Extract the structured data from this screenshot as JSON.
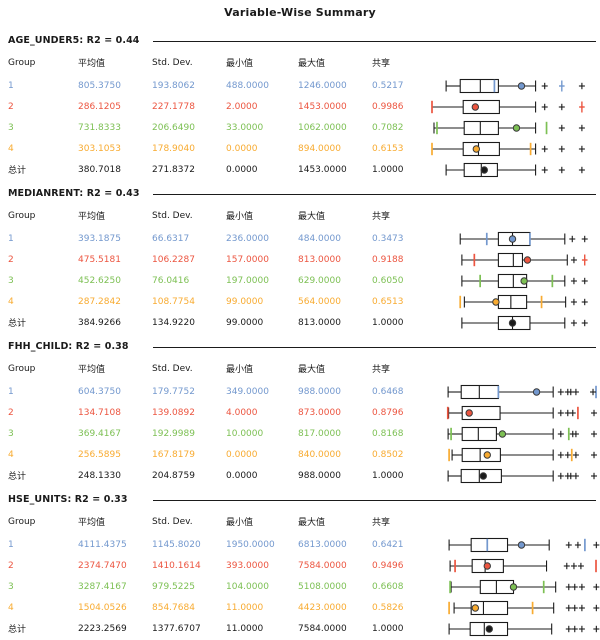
{
  "title": "Variable-Wise Summary",
  "columns": [
    "Group",
    "平均值",
    "Std. Dev.",
    "最小值",
    "最大值",
    "共享"
  ],
  "total_label": "总计",
  "colors": {
    "g1": "#7398CE",
    "g2": "#EC5540",
    "g3": "#7DC054",
    "g4": "#F8AB31",
    "total": "#1A1A1A",
    "line": "#1B1B1B",
    "dot_outline": "#3A3A3A"
  },
  "chart_data": [
    {
      "type": "boxplot",
      "title": "AGE_UNDER5: R2 = 0.44",
      "groups": [
        {
          "group": "1",
          "color": "g1",
          "mean": "805.3750",
          "std": "193.8062",
          "min": "488.0000",
          "max": "1246.0000",
          "share": "0.5217",
          "box": {
            "wlo": 8.5,
            "q1": 17,
            "med": 29.1,
            "q3": 40,
            "whi": 62.4,
            "dot": 53.9,
            "ticks": [
              37.6
            ],
            "outliers": [
              {
                "x": 67.9
              },
              {
                "x": 78.2,
                "colored": true
              },
              {
                "x": 90.3
              }
            ]
          }
        },
        {
          "group": "2",
          "color": "g2",
          "mean": "286.1205",
          "std": "227.1778",
          "min": "2.0000",
          "max": "1453.0000",
          "share": "0.9986",
          "box": {
            "wlo": 0,
            "capL": false,
            "q1": 18.8,
            "q3": 40.6,
            "whi": 62.4,
            "dot": 26.1,
            "ticks": [
              0
            ],
            "outliers": [
              {
                "x": 67.9
              },
              {
                "x": 78.2
              },
              {
                "x": 90.3,
                "colored": true
              }
            ]
          }
        },
        {
          "group": "3",
          "color": "g3",
          "mean": "731.8333",
          "std": "206.6490",
          "min": "33.0000",
          "max": "1062.0000",
          "share": "0.7082",
          "box": {
            "wlo": 1.2,
            "q1": 19.4,
            "med": 29.1,
            "q3": 40,
            "whi": 62.4,
            "dot": 50.9,
            "ticks": [
              3,
              69
            ],
            "outliers": [
              {
                "x": 78.2
              },
              {
                "x": 90.3
              }
            ]
          }
        },
        {
          "group": "4",
          "color": "g4",
          "mean": "303.1053",
          "std": "178.9040",
          "min": "0.0000",
          "max": "894.0000",
          "share": "0.6153",
          "box": {
            "wlo": 0,
            "capL": false,
            "q1": 18.8,
            "med": 28,
            "q3": 40.6,
            "whi": 62.4,
            "dot": 26.7,
            "ticks": [
              0,
              59.4
            ],
            "outliers": [
              {
                "x": 67.9
              },
              {
                "x": 78.2
              },
              {
                "x": 90.3
              }
            ]
          }
        },
        {
          "group": "总计",
          "color": "total",
          "mean": "380.7018",
          "std": "271.8372",
          "min": "0.0000",
          "max": "1453.0000",
          "share": "1.0000",
          "box": {
            "wlo": 8.5,
            "q1": 19.4,
            "med": 29.7,
            "q3": 39.4,
            "whi": 62.4,
            "dot": 31.5,
            "ticks": [],
            "outliers": [
              {
                "x": 67.9
              },
              {
                "x": 78.2
              },
              {
                "x": 90.3
              }
            ]
          }
        }
      ]
    },
    {
      "type": "boxplot",
      "title": "MEDIANRENT: R2 = 0.43",
      "groups": [
        {
          "group": "1",
          "color": "g1",
          "mean": "393.1875",
          "std": "66.6317",
          "min": "236.0000",
          "max": "484.0000",
          "share": "0.3473",
          "box": {
            "wlo": 17,
            "q1": 40,
            "med": 48.5,
            "q3": 59,
            "whi": 80,
            "dot": 48.5,
            "ticks": [
              33,
              59
            ],
            "outliers": [
              {
                "x": 84.5
              },
              {
                "x": 92
              }
            ]
          }
        },
        {
          "group": "2",
          "color": "g2",
          "mean": "475.5181",
          "std": "106.2287",
          "min": "157.0000",
          "max": "813.0000",
          "share": "0.9188",
          "box": {
            "wlo": 18,
            "q1": 40,
            "med": 49,
            "q3": 54.5,
            "whi": 81.5,
            "dot": 57.5,
            "ticks": [
              25.5
            ],
            "outliers": [
              {
                "x": 85.5
              },
              {
                "x": 92,
                "colored": true
              }
            ]
          }
        },
        {
          "group": "3",
          "color": "g3",
          "mean": "452.6250",
          "std": "76.0416",
          "min": "197.0000",
          "max": "629.0000",
          "share": "0.6050",
          "box": {
            "wlo": 18,
            "q1": 40,
            "med": 49,
            "q3": 57,
            "whi": 80,
            "dot": 55.5,
            "ticks": [
              29,
              72.5
            ],
            "outliers": [
              {
                "x": 85.5
              },
              {
                "x": 92
              }
            ]
          }
        },
        {
          "group": "4",
          "color": "g4",
          "mean": "287.2842",
          "std": "108.7754",
          "min": "99.0000",
          "max": "564.0000",
          "share": "0.6513",
          "box": {
            "wlo": 19.5,
            "q1": 40,
            "med": 47.5,
            "q3": 57,
            "whi": 80.5,
            "dot": 38.5,
            "ticks": [
              17,
              66
            ],
            "outliers": [
              {
                "x": 85.5
              },
              {
                "x": 92
              }
            ]
          }
        },
        {
          "group": "总计",
          "color": "total",
          "mean": "384.9266",
          "std": "134.9220",
          "min": "99.0000",
          "max": "813.0000",
          "share": "1.0000",
          "box": {
            "wlo": 18,
            "q1": 40,
            "med": 48.5,
            "q3": 59,
            "whi": 80,
            "dot": 48.5,
            "ticks": [],
            "outliers": [
              {
                "x": 85.5
              },
              {
                "x": 92
              }
            ]
          }
        }
      ]
    },
    {
      "type": "boxplot",
      "title": "FHH_CHILD: R2 = 0.38",
      "groups": [
        {
          "group": "1",
          "color": "g1",
          "mean": "604.3750",
          "std": "179.7752",
          "min": "349.0000",
          "max": "988.0000",
          "share": "0.6468",
          "box": {
            "wlo": 9.7,
            "q1": 17.6,
            "med": 28.5,
            "q3": 40,
            "whi": 73,
            "dot": 63,
            "ticks": [
              40,
              98.8
            ],
            "outliers": [
              {
                "x": 77.6
              },
              {
                "x": 81.8
              },
              {
                "x": 83.6
              },
              {
                "x": 86.7
              },
              {
                "x": 97
              }
            ]
          }
        },
        {
          "group": "2",
          "color": "g2",
          "mean": "134.7108",
          "std": "139.0892",
          "min": "4.0000",
          "max": "873.0000",
          "share": "0.8796",
          "box": {
            "wlo": 10,
            "q1": 18.2,
            "q3": 41,
            "whi": 73,
            "dot": 22.4,
            "ticks": [
              9.5,
              87.9
            ],
            "outliers": [
              {
                "x": 77.6
              },
              {
                "x": 81.8
              },
              {
                "x": 84.8
              },
              {
                "x": 97.6
              }
            ]
          }
        },
        {
          "group": "3",
          "color": "g3",
          "mean": "369.4167",
          "std": "192.9989",
          "min": "10.0000",
          "max": "817.0000",
          "share": "0.8168",
          "box": {
            "wlo": 9.7,
            "q1": 18.2,
            "med": 27.9,
            "q3": 38.8,
            "whi": 73,
            "dot": 42.4,
            "ticks": [
              11.5,
              82.4
            ],
            "outliers": [
              {
                "x": 77.6
              },
              {
                "x": 84.8
              },
              {
                "x": 86.7
              },
              {
                "x": 97.6
              }
            ]
          }
        },
        {
          "group": "4",
          "color": "g4",
          "mean": "256.5895",
          "std": "167.8179",
          "min": "0.0000",
          "max": "840.0000",
          "share": "0.8502",
          "box": {
            "wlo": 12.1,
            "q1": 18.2,
            "med": 29,
            "q3": 41.2,
            "whi": 73,
            "dot": 33.3,
            "ticks": [
              10.3,
              84.2
            ],
            "outliers": [
              {
                "x": 77.6
              },
              {
                "x": 81.8
              },
              {
                "x": 86.7
              },
              {
                "x": 97.6
              }
            ]
          }
        },
        {
          "group": "总计",
          "color": "total",
          "mean": "248.1330",
          "std": "204.8759",
          "min": "0.0000",
          "max": "988.0000",
          "share": "1.0000",
          "box": {
            "wlo": 9.7,
            "q1": 17.6,
            "med": 28.5,
            "q3": 41.8,
            "whi": 73,
            "dot": 30.9,
            "ticks": [],
            "outliers": [
              {
                "x": 77.6
              },
              {
                "x": 81.8
              },
              {
                "x": 83.6
              },
              {
                "x": 86.7
              },
              {
                "x": 97.6
              }
            ]
          }
        }
      ]
    },
    {
      "type": "boxplot",
      "title": "HSE_UNITS: R2 = 0.33",
      "groups": [
        {
          "group": "1",
          "color": "g1",
          "mean": "4111.4375",
          "std": "1145.8020",
          "min": "1950.0000",
          "max": "6813.0000",
          "share": "0.6421",
          "box": {
            "wlo": 10.3,
            "q1": 23.6,
            "q3": 45.5,
            "whi": 70.6,
            "dot": 53.9,
            "ticks": [
              33.3,
              92.1
            ],
            "outliers": [
              {
                "x": 82.4
              },
              {
                "x": 87.9
              },
              {
                "x": 99
              }
            ]
          }
        },
        {
          "group": "2",
          "color": "g2",
          "mean": "2374.7470",
          "std": "1410.1614",
          "min": "393.0000",
          "max": "7584.0000",
          "share": "0.9496",
          "box": {
            "wlo": 10.9,
            "q1": 24.2,
            "med": 32,
            "q3": 43,
            "whi": 69,
            "dot": 33.3,
            "ticks": [
              13.9,
              98.8
            ],
            "outliers": [
              {
                "x": 81.2
              },
              {
                "x": 85.5
              },
              {
                "x": 89.7
              }
            ]
          }
        },
        {
          "group": "3",
          "color": "g3",
          "mean": "3287.4167",
          "std": "979.5225",
          "min": "104.0000",
          "max": "5108.0000",
          "share": "0.6608",
          "box": {
            "wlo": 11.5,
            "q1": 29.1,
            "med": 38.8,
            "q3": 49.1,
            "whi": 74.5,
            "dot": 49.1,
            "ticks": [
              10.9,
              67.3
            ],
            "outliers": [
              {
                "x": 82.4
              },
              {
                "x": 86
              },
              {
                "x": 90.3
              },
              {
                "x": 99
              }
            ]
          }
        },
        {
          "group": "4",
          "color": "g4",
          "mean": "1504.0526",
          "std": "854.7684",
          "min": "11.0000",
          "max": "4423.0000",
          "share": "0.5826",
          "box": {
            "wlo": 13.3,
            "q1": 23.6,
            "med": 31,
            "q3": 45.5,
            "whi": 73.3,
            "dot": 26.1,
            "ticks": [
              10.3,
              60.6
            ],
            "outliers": [
              {
                "x": 82.4
              },
              {
                "x": 86
              },
              {
                "x": 90.3
              },
              {
                "x": 99
              }
            ]
          }
        },
        {
          "group": "总计",
          "color": "total",
          "mean": "2223.2569",
          "std": "1377.6707",
          "min": "11.0000",
          "max": "7584.0000",
          "share": "1.0000",
          "box": {
            "wlo": 10.3,
            "q1": 23,
            "med": 31.5,
            "q3": 45.5,
            "whi": 72.1,
            "dot": 34.5,
            "ticks": [],
            "outliers": [
              {
                "x": 82.4
              },
              {
                "x": 86
              },
              {
                "x": 90.3
              },
              {
                "x": 99
              }
            ]
          }
        }
      ]
    }
  ]
}
